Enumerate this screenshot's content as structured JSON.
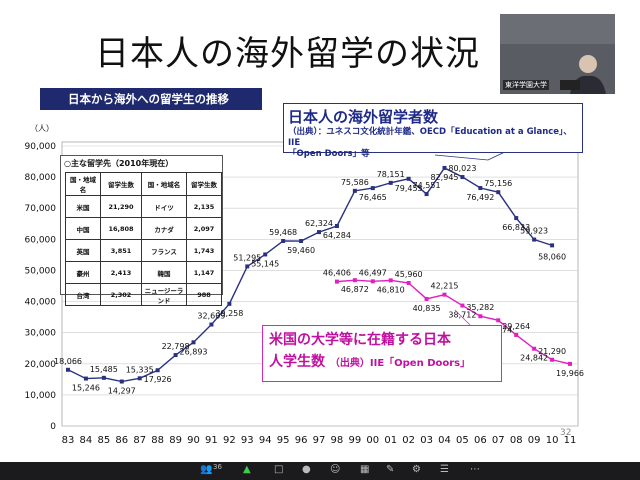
{
  "slide": {
    "title": "日本人の海外留学の状況",
    "subtitle_bar": "日本から海外への留学生の推移",
    "page_number": "32",
    "y_unit": "（人）"
  },
  "box_japan": {
    "heading": "日本人の海外留学者数",
    "source_line1": "（出典）：ユネスコ文化統計年鑑、OECD「Education at a Glance」、IIE",
    "source_line2": "「Open Doors」等"
  },
  "box_us": {
    "line1": "米国の大学等に在籍する日本",
    "line2_main": "人学生数",
    "line2_small": "（出典）IIE「Open Doors」"
  },
  "destinations": {
    "title": "○主な留学先（2010年現在）",
    "headers": [
      "国・地域名",
      "留学生数",
      "国・地域名",
      "留学生数"
    ],
    "rows": [
      [
        "米国",
        "21,290",
        "ドイツ",
        "2,135"
      ],
      [
        "中国",
        "16,808",
        "カナダ",
        "2,097"
      ],
      [
        "英国",
        "3,851",
        "フランス",
        "1,743"
      ],
      [
        "豪州",
        "2,413",
        "韓国",
        "1,147"
      ],
      [
        "台湾",
        "2,302",
        "ニュージーランド",
        "988"
      ]
    ]
  },
  "video": {
    "caption": "東洋学園大学"
  },
  "toolbar": {
    "participants": "36"
  },
  "chart_data": {
    "type": "line",
    "categories": [
      "83",
      "84",
      "85",
      "86",
      "87",
      "88",
      "89",
      "90",
      "91",
      "92",
      "93",
      "94",
      "95",
      "96",
      "97",
      "98",
      "99",
      "00",
      "01",
      "02",
      "03",
      "04",
      "05",
      "06",
      "07",
      "08",
      "09",
      "10",
      "11"
    ],
    "ylim": [
      0,
      90000
    ],
    "yticks": [
      "0",
      "10,000",
      "20,000",
      "30,000",
      "40,000",
      "50,000",
      "60,000",
      "70,000",
      "80,000",
      "90,000"
    ],
    "grid": true,
    "series": [
      {
        "color": "#2a3280",
        "values": [
          18066,
          15246,
          15485,
          14297,
          15335,
          17926,
          22798,
          26893,
          32609,
          39258,
          51295,
          55145,
          59468,
          59460,
          62324,
          64284,
          75586,
          76465,
          78151,
          79455,
          74551,
          82945,
          80023,
          76492,
          75156,
          66833,
          59923,
          58060,
          null
        ],
        "labels": [
          "18,066",
          "15,246",
          "15,485",
          "14,297",
          "15,335",
          "17,926",
          "22,798",
          "26,893",
          "32,609",
          "39,258",
          "51,295",
          "55,145",
          "59,468",
          "59,460",
          "62,324",
          "64,284",
          "75,586",
          "76,465",
          "78,151",
          "79,455",
          "74,551",
          "82,945",
          "80,023",
          "76,492",
          "75,156",
          "66,833",
          "59,923",
          "58,060",
          ""
        ]
      },
      {
        "color": "#e020c0",
        "values": [
          null,
          null,
          null,
          null,
          null,
          null,
          null,
          null,
          null,
          null,
          null,
          null,
          null,
          null,
          null,
          46406,
          46872,
          46497,
          46810,
          45960,
          40835,
          42215,
          38712,
          35282,
          33974,
          29264,
          24842,
          21290,
          19966
        ],
        "labels": [
          "",
          "",
          "",
          "",
          "",
          "",
          "",
          "",
          "",
          "",
          "",
          "",
          "",
          "",
          "",
          "46,406",
          "46,872",
          "46,497",
          "46,810",
          "45,960",
          "40,835",
          "42,215",
          "38,712",
          "35,282",
          "33,974",
          "29,264",
          "24,842",
          "21,290",
          "19,966"
        ]
      }
    ]
  }
}
